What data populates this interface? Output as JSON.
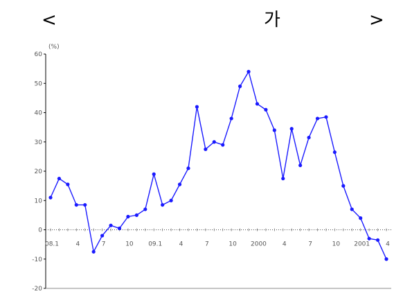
{
  "header": {
    "left_bracket": "<",
    "center_text": "가",
    "right_bracket": ">"
  },
  "chart_data": {
    "type": "line",
    "title": "",
    "xlabel": "",
    "ylabel": "",
    "unit_label": "(%)",
    "ylim": [
      -20,
      60
    ],
    "y_ticks": [
      -20,
      -10,
      0,
      10,
      20,
      30,
      40,
      50,
      60
    ],
    "grid": false,
    "x_tick_labels": [
      "08.1",
      "4",
      "7",
      "10",
      "09.1",
      "4",
      "7",
      "10",
      "2000",
      "4",
      "7",
      "10",
      "2001",
      "4"
    ],
    "x_tick_indices": [
      0,
      3,
      6,
      9,
      12,
      15,
      18,
      21,
      24,
      27,
      30,
      33,
      36,
      39
    ],
    "colors": {
      "series": "#1a1aff",
      "axis": "#000000",
      "zero_line": "#555555"
    },
    "series": [
      {
        "values": [
          11,
          17.5,
          15.5,
          8.5,
          8.5,
          -7.5,
          -2,
          1.5,
          0.5,
          4.5,
          5,
          7,
          19,
          8.5,
          10,
          15.5,
          21,
          42,
          27.5,
          30,
          29,
          38,
          49,
          54,
          43,
          41,
          34,
          17.5,
          34.5,
          22,
          31.5,
          38,
          38.5,
          26.5,
          15,
          7,
          4,
          -3,
          -3.5,
          -10
        ]
      }
    ]
  }
}
